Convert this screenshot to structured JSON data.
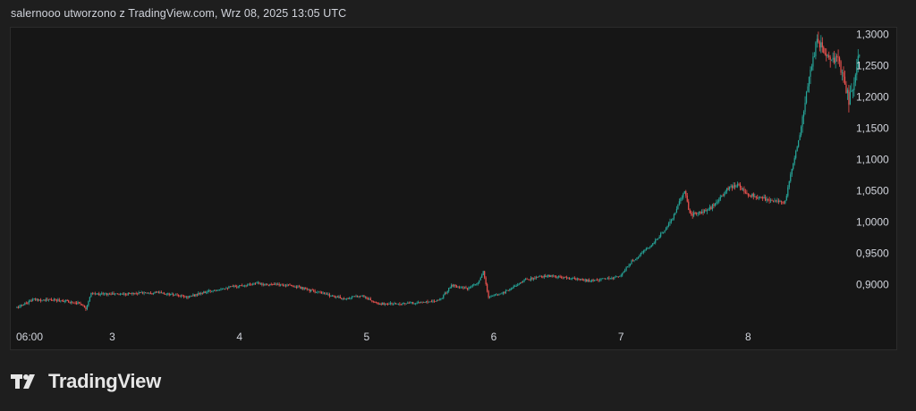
{
  "header": {
    "caption": "salernooo utworzono z TradingView.com, Wrz 08, 2025 13:05 UTC"
  },
  "footer": {
    "logo_text": "TradingView"
  },
  "colors": {
    "up": "#26a69a",
    "down": "#ef5350",
    "background": "#161616",
    "text": "#d1d4dc"
  },
  "chart_data": {
    "type": "candlestick",
    "price_axis_side": "right",
    "grid": false,
    "ylim": [
      0.845,
      1.305
    ],
    "y_ticks": [
      "1,3000",
      "1,2500",
      "1,2000",
      "1,1500",
      "1,1000",
      "1,0500",
      "1,0000",
      "0,9500",
      "0,9000"
    ],
    "y_tick_values": [
      1.3,
      1.25,
      1.2,
      1.15,
      1.1,
      1.05,
      1.0,
      0.95,
      0.9
    ],
    "x_ticks": [
      "06:00",
      "3",
      "4",
      "5",
      "6",
      "7",
      "8"
    ],
    "x_tick_times": [
      0,
      18,
      42,
      66,
      90,
      114,
      138
    ],
    "x_range": [
      -1,
      156
    ],
    "price_path": [
      [
        0,
        0.863
      ],
      [
        3,
        0.876
      ],
      [
        8,
        0.875
      ],
      [
        12,
        0.87
      ],
      [
        13,
        0.862
      ],
      [
        14,
        0.885
      ],
      [
        20,
        0.885
      ],
      [
        26,
        0.888
      ],
      [
        32,
        0.88
      ],
      [
        38,
        0.893
      ],
      [
        45,
        0.902
      ],
      [
        52,
        0.898
      ],
      [
        58,
        0.885
      ],
      [
        62,
        0.877
      ],
      [
        65,
        0.883
      ],
      [
        68,
        0.869
      ],
      [
        74,
        0.87
      ],
      [
        78,
        0.873
      ],
      [
        80,
        0.877
      ],
      [
        82,
        0.899
      ],
      [
        85,
        0.893
      ],
      [
        87,
        0.902
      ],
      [
        88,
        0.92
      ],
      [
        89,
        0.88
      ],
      [
        92,
        0.888
      ],
      [
        96,
        0.908
      ],
      [
        100,
        0.914
      ],
      [
        104,
        0.91
      ],
      [
        108,
        0.906
      ],
      [
        112,
        0.91
      ],
      [
        114,
        0.915
      ],
      [
        116,
        0.937
      ],
      [
        118,
        0.951
      ],
      [
        120,
        0.965
      ],
      [
        122,
        0.985
      ],
      [
        124,
        1.01
      ],
      [
        126,
        1.052
      ],
      [
        127,
        1.012
      ],
      [
        130,
        1.017
      ],
      [
        132,
        1.03
      ],
      [
        134,
        1.052
      ],
      [
        136,
        1.06
      ],
      [
        138,
        1.045
      ],
      [
        141,
        1.037
      ],
      [
        143,
        1.035
      ],
      [
        144,
        1.032
      ],
      [
        145,
        1.032
      ],
      [
        146,
        1.075
      ],
      [
        148,
        1.15
      ],
      [
        149,
        1.212
      ],
      [
        150,
        1.255
      ],
      [
        151,
        1.288
      ],
      [
        153,
        1.27
      ],
      [
        154,
        1.265
      ],
      [
        155,
        1.255
      ],
      [
        156,
        1.232
      ],
      [
        157,
        1.195
      ],
      [
        158,
        1.226
      ],
      [
        159,
        1.27
      ]
    ]
  }
}
